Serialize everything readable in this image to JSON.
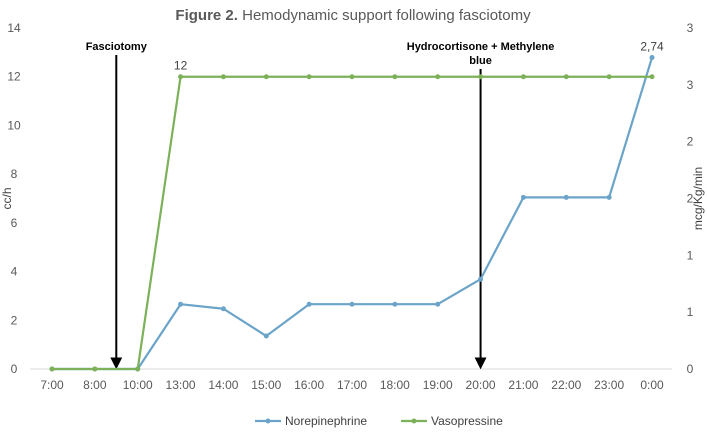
{
  "chart_data": {
    "type": "line",
    "title_bold": "Figure 2.",
    "title_rest": "Hemodynamic support following fasciotomy",
    "categories": [
      "7:00",
      "8:00",
      "10:00",
      "13:00",
      "14:00",
      "15:00",
      "16:00",
      "17:00",
      "18:00",
      "19:00",
      "20:00",
      "21:00",
      "22:00",
      "23:00",
      "0:00"
    ],
    "left_axis": {
      "label": "cc/h",
      "range": [
        0,
        14
      ],
      "ticks": [
        "0",
        "2",
        "4",
        "6",
        "8",
        "10",
        "12",
        "14"
      ]
    },
    "right_axis": {
      "label": "mcg/Kg/min",
      "range": [
        0,
        3
      ],
      "ticks": [
        "0",
        "1",
        "1",
        "2",
        "2",
        "3",
        "3"
      ]
    },
    "grid": false,
    "legend_position": "bottom",
    "series": [
      {
        "name": "Norepinephrine",
        "axis": "right",
        "color": "#6BA3C9",
        "values": [
          0,
          0,
          0,
          0.57,
          0.53,
          0.29,
          0.57,
          0.57,
          0.57,
          0.57,
          0.79,
          1.51,
          1.51,
          1.51,
          2.74
        ]
      },
      {
        "name": "Vasopressine",
        "axis": "left",
        "color": "#7CB15A",
        "values": [
          0,
          0,
          0,
          12,
          12,
          12,
          12,
          12,
          12,
          12,
          12,
          12,
          12,
          12,
          12
        ]
      }
    ],
    "annotations": [
      {
        "text_lines": [
          "Fasciotomy"
        ],
        "category_position": 1.5
      },
      {
        "text_lines": [
          "Hydrocortisone +  Methylene",
          "blue"
        ],
        "category_position": 10
      }
    ],
    "data_labels": [
      {
        "series": "Vasopressine",
        "index": 3,
        "text": "12"
      },
      {
        "series": "Norepinephrine",
        "index": 14,
        "text": "2,74"
      }
    ]
  }
}
